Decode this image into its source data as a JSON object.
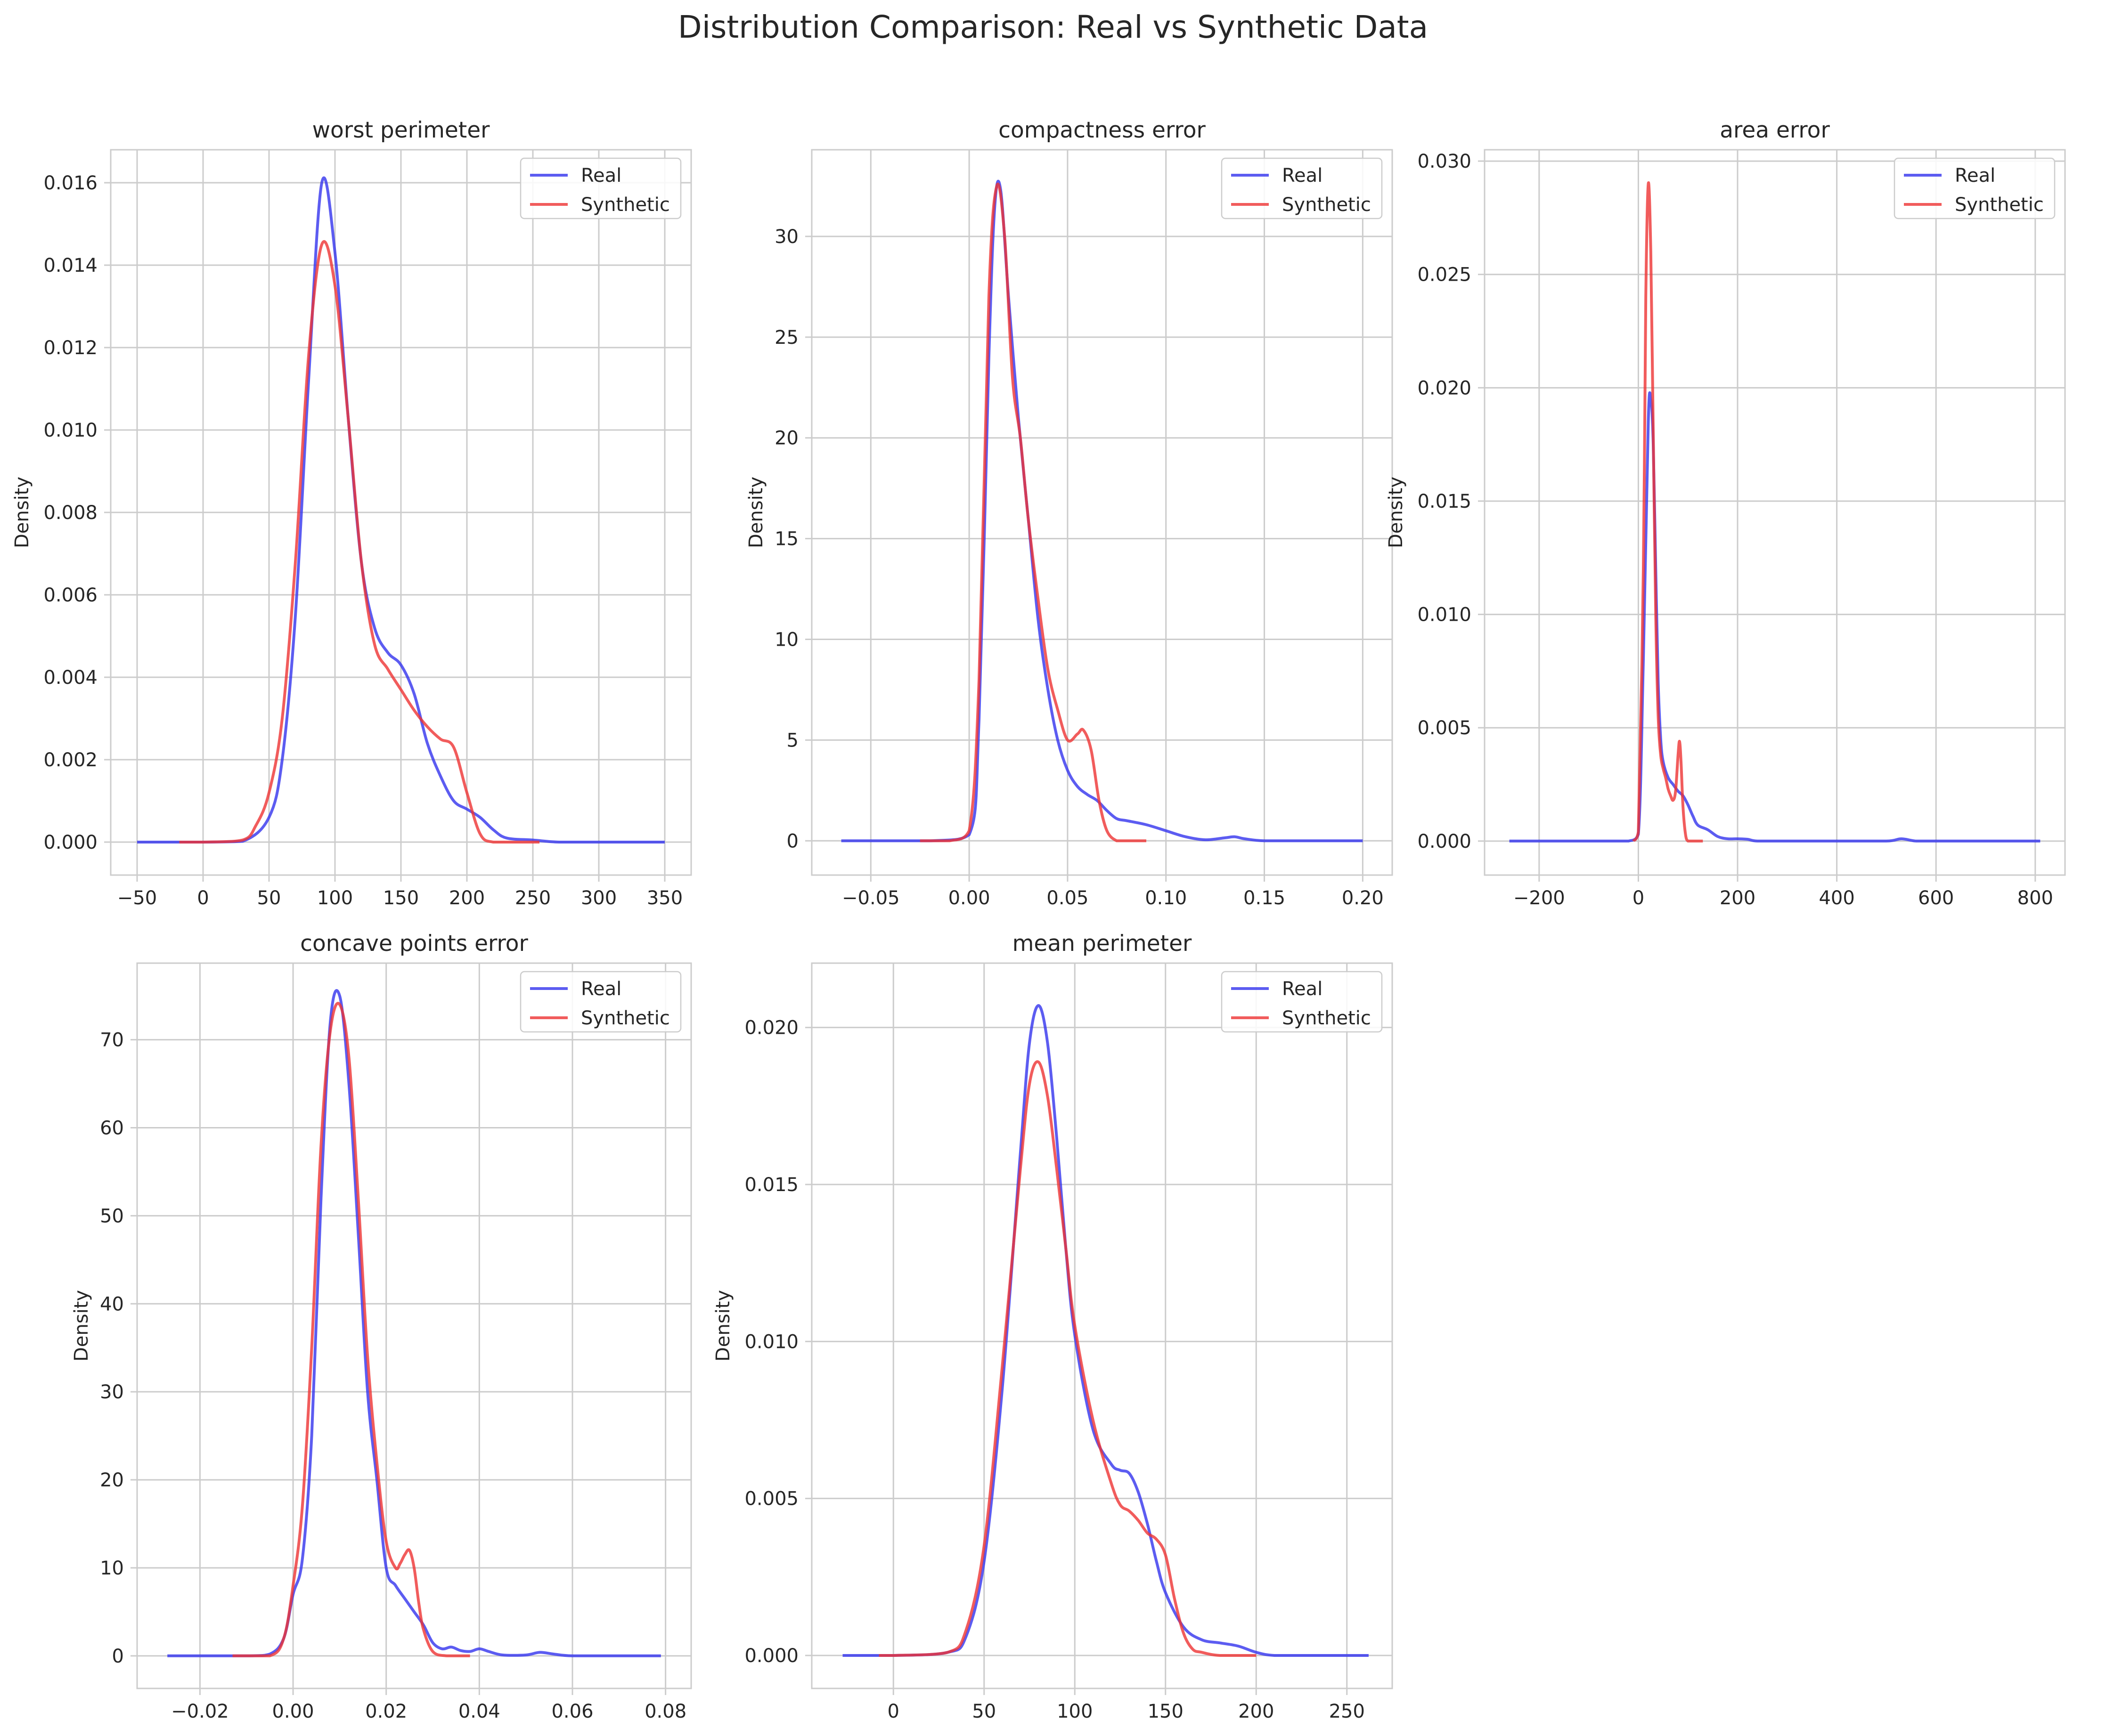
{
  "suptitle": "Distribution Comparison: Real vs Synthetic Data",
  "colors": {
    "real": "#3333ee",
    "synthetic": "#ee3333"
  },
  "chart_data": [
    {
      "type": "line",
      "title": "worst perimeter",
      "ylabel": "Density",
      "xlim": [
        -70,
        370
      ],
      "ylim": [
        -0.0008,
        0.0168
      ],
      "xticks": [
        -50,
        0,
        50,
        100,
        150,
        200,
        250,
        300,
        350
      ],
      "yticks": [
        0.0,
        0.002,
        0.004,
        0.006,
        0.008,
        0.01,
        0.012,
        0.014,
        0.016
      ],
      "ydec": 3,
      "legend": "top-right",
      "series": [
        {
          "name": "Real",
          "color": "#3333ee",
          "x": [
            -50,
            0,
            30,
            50,
            60,
            70,
            80,
            90,
            100,
            110,
            120,
            130,
            140,
            150,
            160,
            170,
            180,
            190,
            200,
            210,
            220,
            230,
            250,
            270,
            300,
            350
          ],
          "y": [
            0,
            0,
            2e-05,
            0.0006,
            0.002,
            0.0055,
            0.0112,
            0.016,
            0.0143,
            0.0103,
            0.0068,
            0.0052,
            0.0046,
            0.0043,
            0.0036,
            0.0024,
            0.0016,
            0.001,
            0.0008,
            0.0006,
            0.0003,
            0.0001,
            5e-05,
            0,
            0,
            0
          ]
        },
        {
          "name": "Synthetic",
          "color": "#ee3333",
          "x": [
            -18,
            0,
            30,
            40,
            50,
            60,
            70,
            80,
            90,
            100,
            110,
            120,
            130,
            140,
            150,
            160,
            170,
            180,
            190,
            200,
            210,
            220,
            240,
            255
          ],
          "y": [
            0,
            0,
            5e-05,
            0.0004,
            0.0012,
            0.003,
            0.0068,
            0.0118,
            0.0145,
            0.0135,
            0.0103,
            0.0068,
            0.0048,
            0.0042,
            0.0037,
            0.0032,
            0.0028,
            0.0025,
            0.0023,
            0.0012,
            0.0002,
            0,
            0,
            0
          ]
        }
      ]
    },
    {
      "type": "line",
      "title": "compactness error",
      "ylabel": "Density",
      "xlim": [
        -0.08,
        0.215
      ],
      "ylim": [
        -1.7,
        34.3
      ],
      "xticks": [
        -0.05,
        0.0,
        0.05,
        0.1,
        0.15,
        0.2
      ],
      "yticks": [
        0,
        5,
        10,
        15,
        20,
        25,
        30
      ],
      "xdec": 2,
      "legend": "top-right",
      "series": [
        {
          "name": "Real",
          "color": "#3333ee",
          "x": [
            -0.065,
            -0.02,
            0.0,
            0.005,
            0.01,
            0.013,
            0.016,
            0.02,
            0.025,
            0.03,
            0.035,
            0.04,
            0.045,
            0.05,
            0.055,
            0.06,
            0.065,
            0.07,
            0.075,
            0.08,
            0.09,
            0.1,
            0.11,
            0.12,
            0.13,
            0.135,
            0.14,
            0.15,
            0.17,
            0.2
          ],
          "y": [
            0,
            0,
            0.3,
            6,
            24,
            31.5,
            32.3,
            27,
            21,
            16,
            11,
            7.5,
            5,
            3.5,
            2.7,
            2.3,
            2,
            1.5,
            1.1,
            1,
            0.8,
            0.5,
            0.2,
            0.05,
            0.15,
            0.2,
            0.1,
            0,
            0,
            0
          ]
        },
        {
          "name": "Synthetic",
          "color": "#ee3333",
          "x": [
            -0.025,
            -0.01,
            0.0,
            0.005,
            0.01,
            0.014,
            0.018,
            0.022,
            0.026,
            0.03,
            0.035,
            0.04,
            0.045,
            0.05,
            0.055,
            0.058,
            0.062,
            0.066,
            0.07,
            0.075,
            0.08,
            0.09
          ],
          "y": [
            0,
            0,
            0.5,
            8,
            27,
            32.5,
            30,
            23,
            20,
            16,
            12,
            8.5,
            6.5,
            5,
            5.3,
            5.5,
            4.5,
            2,
            0.5,
            0,
            0,
            0
          ]
        }
      ]
    },
    {
      "type": "line",
      "title": "area error",
      "ylabel": "Density",
      "xlim": [
        -310,
        860
      ],
      "ylim": [
        -0.0015,
        0.0305
      ],
      "xticks": [
        -200,
        0,
        200,
        400,
        600,
        800
      ],
      "yticks": [
        0.0,
        0.005,
        0.01,
        0.015,
        0.02,
        0.025,
        0.03
      ],
      "ydec": 3,
      "legend": "top-right",
      "series": [
        {
          "name": "Real",
          "color": "#3333ee",
          "x": [
            -260,
            -50,
            -20,
            0,
            10,
            20,
            25,
            30,
            35,
            40,
            45,
            50,
            60,
            70,
            80,
            90,
            100,
            110,
            120,
            140,
            160,
            180,
            200,
            220,
            240,
            300,
            400,
            500,
            530,
            560,
            600,
            700,
            810
          ],
          "y": [
            0,
            0,
            0,
            0.0003,
            0.008,
            0.0185,
            0.0195,
            0.0175,
            0.012,
            0.007,
            0.0045,
            0.0035,
            0.0028,
            0.0025,
            0.0022,
            0.002,
            0.0016,
            0.0011,
            0.0007,
            0.0005,
            0.0002,
            0.0001,
            0.0001,
            8e-05,
            0,
            0,
            0,
            0,
            0.0001,
            0,
            0,
            0,
            0
          ]
        },
        {
          "name": "Synthetic",
          "color": "#ee3333",
          "x": [
            -10,
            0,
            10,
            15,
            20,
            25,
            30,
            35,
            40,
            45,
            50,
            55,
            60,
            65,
            70,
            75,
            80,
            83,
            86,
            90,
            95,
            100,
            110,
            130
          ],
          "y": [
            0,
            0.0004,
            0.012,
            0.024,
            0.029,
            0.026,
            0.018,
            0.01,
            0.0055,
            0.0038,
            0.0032,
            0.0028,
            0.0023,
            0.002,
            0.0018,
            0.0022,
            0.0038,
            0.0044,
            0.0035,
            0.0015,
            0.0003,
            0,
            0,
            0
          ]
        }
      ]
    },
    {
      "type": "line",
      "title": "concave points error",
      "ylabel": "Density",
      "xlim": [
        -0.0335,
        0.0855
      ],
      "ylim": [
        -3.7,
        78.7
      ],
      "xticks": [
        -0.02,
        0.0,
        0.02,
        0.04,
        0.06,
        0.08
      ],
      "yticks": [
        0,
        10,
        20,
        30,
        40,
        50,
        60,
        70
      ],
      "xdec": 2,
      "legend": "top-right",
      "series": [
        {
          "name": "Real",
          "color": "#3333ee",
          "x": [
            -0.027,
            -0.01,
            -0.005,
            -0.002,
            0.0,
            0.002,
            0.004,
            0.006,
            0.008,
            0.01,
            0.012,
            0.014,
            0.016,
            0.018,
            0.02,
            0.022,
            0.024,
            0.026,
            0.028,
            0.03,
            0.032,
            0.034,
            0.036,
            0.038,
            0.04,
            0.042,
            0.045,
            0.05,
            0.053,
            0.056,
            0.06,
            0.07,
            0.079
          ],
          "y": [
            0,
            0,
            0.2,
            2,
            7,
            11,
            25,
            52,
            72,
            75,
            65,
            48,
            30,
            20,
            10,
            8,
            6.5,
            5,
            3.5,
            1.5,
            0.8,
            1,
            0.6,
            0.5,
            0.8,
            0.5,
            0.1,
            0.1,
            0.4,
            0.2,
            0,
            0,
            0
          ]
        },
        {
          "name": "Synthetic",
          "color": "#ee3333",
          "x": [
            -0.013,
            -0.005,
            -0.002,
            0.0,
            0.002,
            0.004,
            0.006,
            0.008,
            0.01,
            0.012,
            0.014,
            0.016,
            0.018,
            0.02,
            0.022,
            0.023,
            0.024,
            0.025,
            0.026,
            0.027,
            0.028,
            0.03,
            0.033,
            0.038
          ],
          "y": [
            0,
            0,
            2,
            8,
            17,
            35,
            58,
            71,
            74,
            68,
            52,
            34,
            22,
            13,
            10,
            10.5,
            11.5,
            12,
            10,
            6,
            3,
            0.5,
            0,
            0
          ]
        }
      ]
    },
    {
      "type": "line",
      "title": "mean perimeter",
      "ylabel": "Density",
      "xlim": [
        -45,
        275
      ],
      "ylim": [
        -0.00105,
        0.02205
      ],
      "xticks": [
        0,
        50,
        100,
        150,
        200,
        250
      ],
      "yticks": [
        0.0,
        0.005,
        0.01,
        0.015,
        0.02
      ],
      "ydec": 3,
      "legend": "top-right",
      "series": [
        {
          "name": "Real",
          "color": "#3333ee",
          "x": [
            -28,
            0,
            30,
            40,
            50,
            60,
            70,
            75,
            80,
            85,
            90,
            95,
            100,
            110,
            120,
            125,
            130,
            135,
            140,
            145,
            150,
            160,
            170,
            180,
            190,
            200,
            210,
            230,
            262
          ],
          "y": [
            0,
            0,
            0.0001,
            0.0006,
            0.003,
            0.0085,
            0.016,
            0.0195,
            0.0207,
            0.0195,
            0.0165,
            0.013,
            0.0102,
            0.0072,
            0.0061,
            0.0059,
            0.0058,
            0.0052,
            0.0042,
            0.003,
            0.002,
            0.0009,
            0.0005,
            0.0004,
            0.0003,
            0.0001,
            0,
            0,
            0
          ]
        },
        {
          "name": "Synthetic",
          "color": "#ee3333",
          "x": [
            -8,
            0,
            30,
            40,
            50,
            60,
            70,
            75,
            80,
            85,
            90,
            95,
            100,
            110,
            120,
            125,
            130,
            135,
            140,
            145,
            150,
            155,
            160,
            165,
            170,
            180,
            200
          ],
          "y": [
            0,
            0,
            0.0001,
            0.0008,
            0.0035,
            0.0092,
            0.0155,
            0.0182,
            0.0189,
            0.0178,
            0.0155,
            0.013,
            0.0105,
            0.0075,
            0.0055,
            0.0048,
            0.0046,
            0.0043,
            0.0039,
            0.0037,
            0.0032,
            0.0018,
            0.0007,
            0.0002,
            0.0001,
            0,
            0
          ]
        }
      ]
    }
  ]
}
